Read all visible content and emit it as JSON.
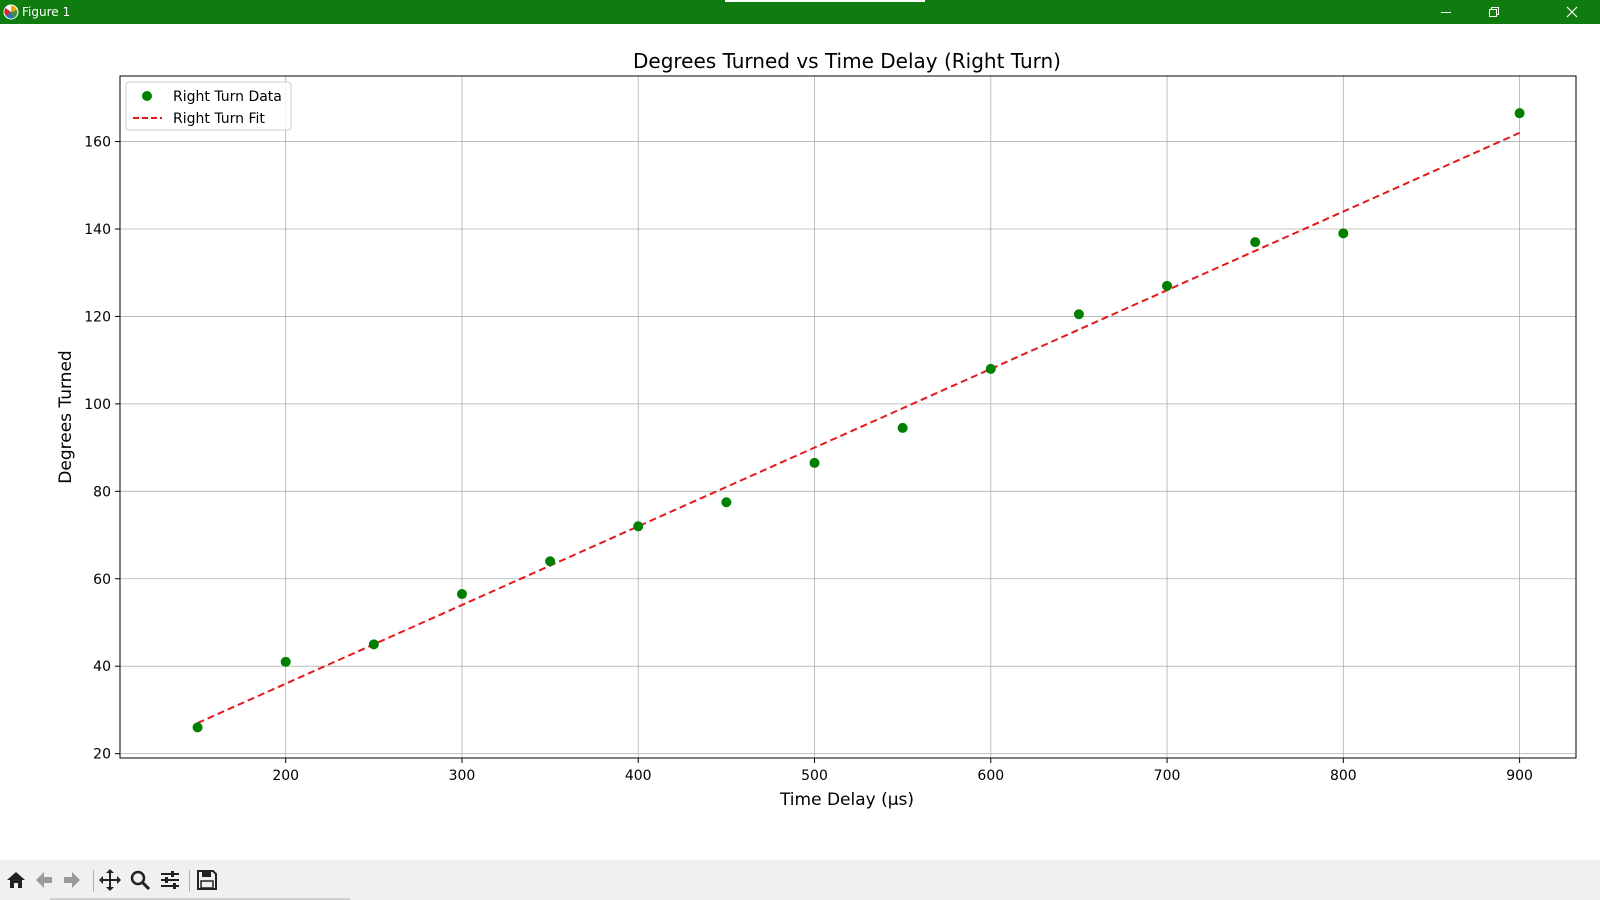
{
  "window": {
    "title": "Figure 1",
    "accent": "#107c10",
    "controls": [
      "minimize-icon",
      "restore-icon",
      "close-icon"
    ]
  },
  "toolbar": {
    "icons": [
      "home-icon",
      "back-icon",
      "forward-icon",
      "pan-icon",
      "zoom-icon",
      "configure-subplots-icon",
      "save-icon"
    ]
  },
  "chart_data": {
    "type": "scatter",
    "title": "Degrees Turned vs Time Delay (Right Turn)",
    "xlabel": "Time Delay (µs)",
    "ylabel": "Degrees Turned",
    "xlim": [
      106,
      932
    ],
    "ylim": [
      19,
      175
    ],
    "xticks": [
      200,
      300,
      400,
      500,
      600,
      700,
      800,
      900
    ],
    "yticks": [
      20,
      40,
      60,
      80,
      100,
      120,
      140,
      160
    ],
    "grid": true,
    "legend_position": "upper-left",
    "series": [
      {
        "name": "Right Turn Data",
        "kind": "scatter",
        "color": "#008000",
        "x": [
          150,
          200,
          250,
          300,
          350,
          400,
          450,
          500,
          550,
          600,
          650,
          700,
          750,
          800,
          900
        ],
        "y": [
          26,
          41,
          45,
          56.5,
          64,
          72,
          77.5,
          86.5,
          94.5,
          108,
          120.5,
          127,
          137,
          139,
          166.5
        ]
      },
      {
        "name": "Right Turn Fit",
        "kind": "line",
        "style": "dashed",
        "color": "#e31a1c",
        "x": [
          150,
          900
        ],
        "y": [
          27,
          162
        ]
      }
    ]
  }
}
